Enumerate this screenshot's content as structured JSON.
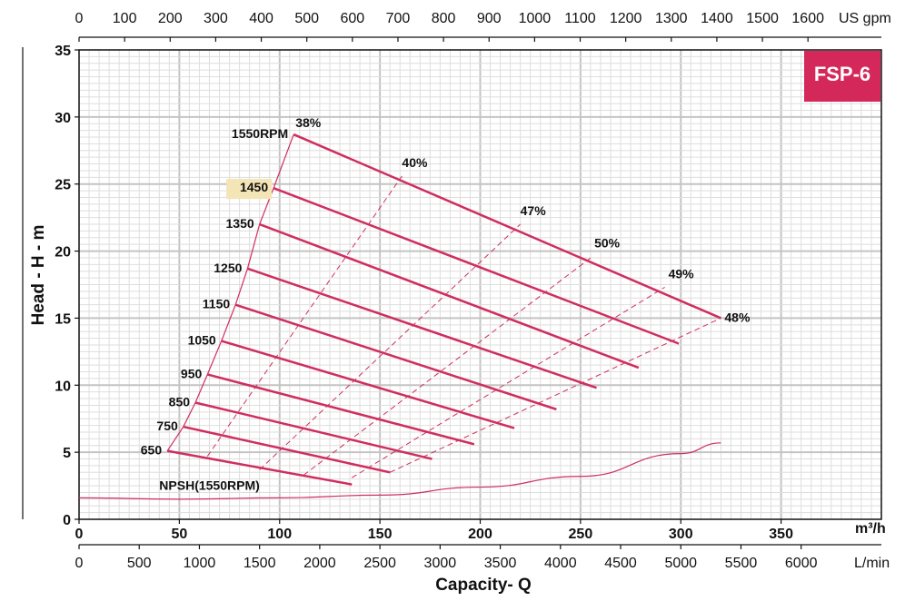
{
  "chart_data": {
    "type": "line",
    "title": "FSP-6",
    "xlabel": "Capacity- Q",
    "ylabel": "Head - H - m",
    "xlim": [
      0,
      400
    ],
    "ylim": [
      0,
      35
    ],
    "x_unit": "m³/h",
    "x_ticks": [
      "0",
      "50",
      "100",
      "150",
      "200",
      "250",
      "300",
      "350"
    ],
    "y_ticks": [
      "0",
      "5",
      "10",
      "15",
      "20",
      "25",
      "30",
      "35"
    ],
    "secondary_x_top": {
      "unit": "US gpm",
      "ticks": [
        {
          "label": "0",
          "value": 0
        },
        {
          "label": "100",
          "value": 100
        },
        {
          "label": "200",
          "value": 200
        },
        {
          "label": "300",
          "value": 300
        },
        {
          "label": "400",
          "value": 400
        },
        {
          "label": "500",
          "value": 500
        },
        {
          "label": "600",
          "value": 600
        },
        {
          "label": "700",
          "value": 700
        },
        {
          "label": "800",
          "value": 800
        },
        {
          "label": "900",
          "value": 900
        },
        {
          "label": "1000",
          "value": 1000
        },
        {
          "label": "1100",
          "value": 1100
        },
        {
          "label": "1200",
          "value": 1200
        },
        {
          "label": "1300",
          "value": 1300
        },
        {
          "label": "1400",
          "value": 1400
        },
        {
          "label": "1500",
          "value": 1500
        },
        {
          "label": "1600",
          "value": 1600
        }
      ]
    },
    "secondary_x_bottom": {
      "unit": "L/min",
      "ticks": [
        {
          "label": "0",
          "value": 0
        },
        {
          "label": "500",
          "value": 500
        },
        {
          "label": "1000",
          "value": 1000
        },
        {
          "label": "1500",
          "value": 1500
        },
        {
          "label": "2000",
          "value": 2000
        },
        {
          "label": "2500",
          "value": 2500
        },
        {
          "label": "3000",
          "value": 3000
        },
        {
          "label": "3500",
          "value": 3500
        },
        {
          "label": "4000",
          "value": 4000
        },
        {
          "label": "4500",
          "value": 4500
        },
        {
          "label": "5000",
          "value": 5000
        },
        {
          "label": "5500",
          "value": 5500
        },
        {
          "label": "6000",
          "value": 6000
        }
      ]
    },
    "series": [
      {
        "name": "1550RPM",
        "label": "1550RPM",
        "x": [
          107,
          320
        ],
        "y": [
          28.7,
          15.0
        ]
      },
      {
        "name": "1450",
        "label": "1450",
        "x": [
          97,
          299
        ],
        "y": [
          24.7,
          13.1
        ],
        "highlight": true
      },
      {
        "name": "1350",
        "label": "1350",
        "x": [
          90,
          279
        ],
        "y": [
          22.0,
          11.3
        ]
      },
      {
        "name": "1250",
        "label": "1250",
        "x": [
          84,
          258
        ],
        "y": [
          18.7,
          9.8
        ]
      },
      {
        "name": "1150",
        "label": "1150",
        "x": [
          78,
          238
        ],
        "y": [
          16.0,
          8.2
        ]
      },
      {
        "name": "1050",
        "label": "1050",
        "x": [
          71,
          217
        ],
        "y": [
          13.3,
          6.8
        ]
      },
      {
        "name": "950",
        "label": "950",
        "x": [
          64,
          197
        ],
        "y": [
          10.8,
          5.6
        ]
      },
      {
        "name": "850",
        "label": "850",
        "x": [
          58,
          176
        ],
        "y": [
          8.7,
          4.5
        ]
      },
      {
        "name": "750",
        "label": "750",
        "x": [
          52,
          155
        ],
        "y": [
          6.9,
          3.5
        ]
      },
      {
        "name": "650",
        "label": "650",
        "x": [
          44,
          136
        ],
        "y": [
          5.1,
          2.6
        ]
      }
    ],
    "min_flow_curve": {
      "x": [
        44,
        52,
        58,
        64,
        71,
        78,
        84,
        90,
        97,
        107
      ],
      "y": [
        5.1,
        6.9,
        8.7,
        10.8,
        13.3,
        16.0,
        18.7,
        22.0,
        24.7,
        28.7
      ]
    },
    "efficiency_lines": [
      {
        "label": "38%",
        "x": [
          107,
          107
        ],
        "y": [
          28.7,
          28.7
        ]
      },
      {
        "label": "40%",
        "x": [
          64,
          161
        ],
        "y": [
          4.7,
          25.6
        ]
      },
      {
        "label": "47%",
        "x": [
          90,
          220
        ],
        "y": [
          3.7,
          22.0
        ]
      },
      {
        "label": "50%",
        "x": [
          112,
          256
        ],
        "y": [
          3.3,
          19.6
        ]
      },
      {
        "label": "49%",
        "x": [
          136,
          292
        ],
        "y": [
          3.1,
          17.3
        ]
      },
      {
        "label": "48%",
        "x": [
          155,
          320
        ],
        "y": [
          3.5,
          15.0
        ]
      }
    ],
    "npsh": {
      "label": "NPSH(1550RPM)",
      "x": [
        0,
        50,
        100,
        150,
        200,
        250,
        300,
        320
      ],
      "y": [
        1.6,
        1.5,
        1.6,
        1.8,
        2.4,
        3.2,
        4.9,
        5.7
      ]
    }
  }
}
